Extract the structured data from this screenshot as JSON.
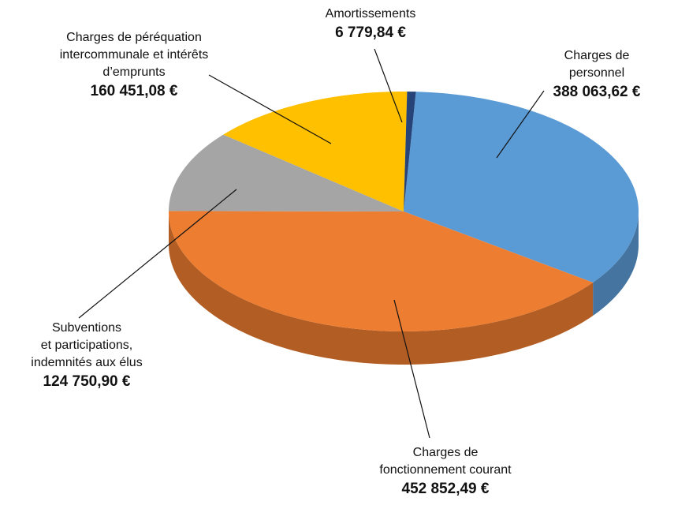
{
  "chart_data": {
    "type": "pie",
    "categories": [
      "Charges de personnel",
      "Charges de\nfonctionnement courant",
      "Subventions\net participations,\nindemnités aux élus",
      "Charges de péréquation\nintercommunale et intérêts\nd’emprunts",
      "Amortissements"
    ],
    "values": [
      388063.62,
      452852.49,
      124750.9,
      160451.08,
      6779.84
    ],
    "value_labels": [
      "388 063,62 €",
      "452 852,49 €",
      "124 750,90 €",
      "160 451,08 €",
      "6 779,84 €"
    ],
    "colors": [
      "#5b9bd5",
      "#ed7d31",
      "#a5a5a5",
      "#ffc000",
      "#264478"
    ]
  }
}
